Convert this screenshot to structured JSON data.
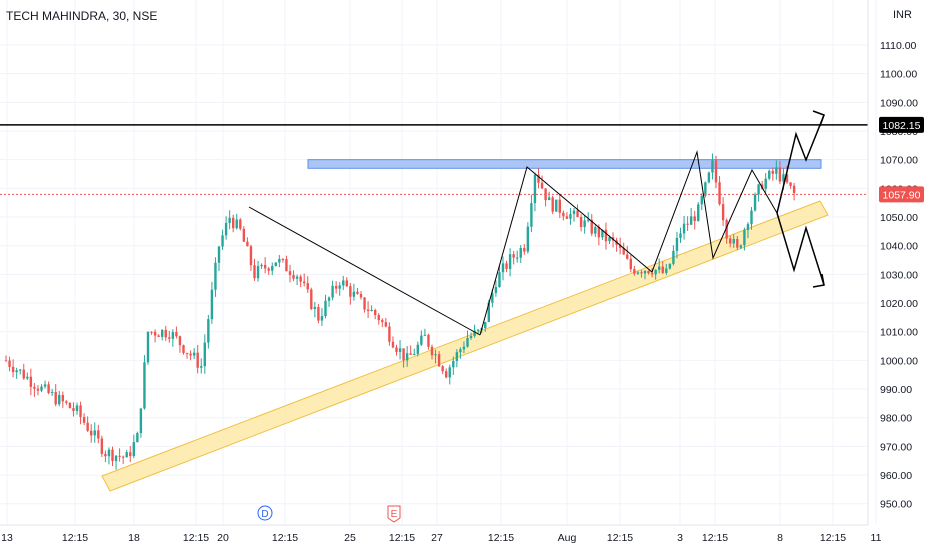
{
  "title": "TECH MAHINDRA, 30, NSE",
  "currency": "INR",
  "colors": {
    "up": "#26a69a",
    "down": "#ef5350",
    "price_line": "#ef5350",
    "resistance_zone": "#9cbcf5",
    "support_channel": "#fde9a7",
    "level_line": "#000000"
  },
  "chart_data": {
    "type": "candlestick",
    "title": "TECH MAHINDRA, 30, NSE",
    "y_axis": {
      "unit": "INR",
      "range": [
        944,
        1118
      ],
      "ticks": [
        "950.00",
        "960.00",
        "970.00",
        "980.00",
        "990.00",
        "1000.00",
        "1010.00",
        "1020.00",
        "1030.00",
        "1040.00",
        "1050.00",
        "1060.00",
        "1070.00",
        "1080.00",
        "1090.00",
        "1100.00",
        "1110.00"
      ]
    },
    "x_axis": {
      "tick_labels": [
        "13",
        "12:15",
        "18",
        "12:15",
        "20",
        "12:15",
        "25",
        "12:15",
        "27",
        "12:15",
        "Aug",
        "12:15",
        "3",
        "12:15",
        "8",
        "12:15",
        "11"
      ]
    },
    "last_price": "1057.90",
    "level_label": "1082.15",
    "level_value": 1082.15,
    "resistance_zone": [
      1067,
      1070
    ],
    "events": [
      "D",
      "E"
    ],
    "anchors": [
      {
        "bar": 0,
        "price": 1000
      },
      {
        "bar": 10,
        "price": 990
      },
      {
        "bar": 20,
        "price": 982
      },
      {
        "bar": 28,
        "price": 968
      },
      {
        "bar": 34,
        "price": 966
      },
      {
        "bar": 37,
        "price": 973
      },
      {
        "bar": 40,
        "price": 1010
      },
      {
        "bar": 46,
        "price": 1010
      },
      {
        "bar": 55,
        "price": 998
      },
      {
        "bar": 60,
        "price": 1040
      },
      {
        "bar": 63,
        "price": 1050
      },
      {
        "bar": 66,
        "price": 1045
      },
      {
        "bar": 70,
        "price": 1030
      },
      {
        "bar": 76,
        "price": 1035
      },
      {
        "bar": 82,
        "price": 1030
      },
      {
        "bar": 88,
        "price": 1015
      },
      {
        "bar": 94,
        "price": 1028
      },
      {
        "bar": 100,
        "price": 1020
      },
      {
        "bar": 105,
        "price": 1015
      },
      {
        "bar": 110,
        "price": 1005
      },
      {
        "bar": 113,
        "price": 1000
      },
      {
        "bar": 118,
        "price": 1008
      },
      {
        "bar": 124,
        "price": 996
      },
      {
        "bar": 130,
        "price": 1008
      },
      {
        "bar": 134,
        "price": 1010
      },
      {
        "bar": 138,
        "price": 1028
      },
      {
        "bar": 142,
        "price": 1035
      },
      {
        "bar": 146,
        "price": 1040
      },
      {
        "bar": 149,
        "price": 1066
      },
      {
        "bar": 153,
        "price": 1055
      },
      {
        "bar": 160,
        "price": 1050
      },
      {
        "bar": 166,
        "price": 1045
      },
      {
        "bar": 172,
        "price": 1040
      },
      {
        "bar": 176,
        "price": 1032
      },
      {
        "bar": 182,
        "price": 1032
      },
      {
        "bar": 186,
        "price": 1030
      },
      {
        "bar": 190,
        "price": 1045
      },
      {
        "bar": 195,
        "price": 1052
      },
      {
        "bar": 199,
        "price": 1068
      },
      {
        "bar": 203,
        "price": 1045
      },
      {
        "bar": 206,
        "price": 1038
      },
      {
        "bar": 209,
        "price": 1050
      },
      {
        "bar": 213,
        "price": 1062
      },
      {
        "bar": 217,
        "price": 1066
      },
      {
        "bar": 222,
        "price": 1058
      }
    ],
    "num_bars": 223
  }
}
